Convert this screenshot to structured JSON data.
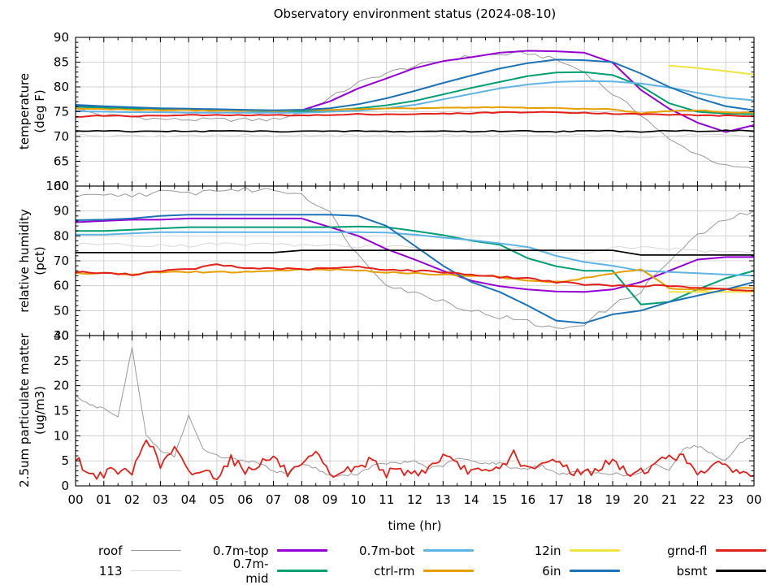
{
  "title": "Observatory environment status (2024-08-10)",
  "xlabel": "time (hr)",
  "x_tick_labels": [
    "00",
    "01",
    "02",
    "03",
    "04",
    "05",
    "06",
    "07",
    "08",
    "09",
    "10",
    "11",
    "12",
    "13",
    "14",
    "15",
    "16",
    "17",
    "18",
    "19",
    "20",
    "21",
    "22",
    "23",
    "00"
  ],
  "series_colors": {
    "roof": "#999999",
    "113": "#d8d8d8",
    "0.7m-top": "#9400d3",
    "0.7m-mid": "#009e73",
    "0.7m-bot": "#5fb4e5",
    "ctrl-rm": "#e69f00",
    "12in": "#f0e442",
    "6in": "#1d73b6",
    "grnd-fl": "#e3211b",
    "bsmt": "#000000"
  },
  "legend": {
    "columns": [
      [
        {
          "label": "roof",
          "thin": true
        },
        {
          "label": "113",
          "thin": true
        }
      ],
      [
        {
          "label": "0.7m-top",
          "thin": false
        },
        {
          "label": "0.7m-mid",
          "thin": false
        }
      ],
      [
        {
          "label": "0.7m-bot",
          "thin": false
        },
        {
          "label": "ctrl-rm",
          "thin": false
        }
      ],
      [
        {
          "label": "12in",
          "thin": false
        },
        {
          "label": "6in",
          "thin": false
        }
      ],
      [
        {
          "label": "grnd-fl",
          "thin": false
        },
        {
          "label": "bsmt",
          "thin": false
        }
      ]
    ]
  },
  "chart_data": {
    "type": "line",
    "x_axis": {
      "label": "time (hr)",
      "range_hours": [
        0,
        24
      ],
      "major_tick_hours": 1,
      "minor_tick_hours": 0.5,
      "grid": true
    },
    "panels": [
      {
        "id": "temperature",
        "ylabel": [
          "temperature",
          "(deg F)"
        ],
        "ylim": [
          60,
          90
        ],
        "yticks": [
          60,
          65,
          70,
          75,
          80,
          85,
          90
        ],
        "minor_y": 1,
        "series": [
          {
            "name": "roof",
            "x_step": 1,
            "width": 1,
            "noise": 0.4,
            "values": [
              75.5,
              74.3,
              74,
              73.5,
              73.4,
              73.4,
              73.4,
              73.4,
              74.8,
              77.8,
              80.8,
              82.8,
              84.2,
              85.3,
              86.2,
              86.5,
              86.8,
              85.5,
              83,
              78.6,
              74.5,
              69.3,
              66.5,
              64,
              63.4
            ]
          },
          {
            "name": "113",
            "x_step": 1,
            "width": 1,
            "noise": 0.2,
            "values": [
              70.3,
              70.2,
              70.3,
              70.1,
              70.3,
              70.2,
              70.3,
              70.2,
              70.3,
              70.1,
              70.3,
              70.2,
              70.1,
              70.3,
              70.2,
              70.3,
              70.1,
              70.2,
              70.3,
              70.2,
              69.9,
              70.1,
              70.4,
              70.2,
              70.1
            ]
          },
          {
            "name": "0.7m-top",
            "x_step": 1,
            "width": 2,
            "noise": 0,
            "values": [
              76.2,
              76,
              75.8,
              75.6,
              75.5,
              75.4,
              75.3,
              75.2,
              75.3,
              77.1,
              79.7,
              81.7,
              83.8,
              85.2,
              86,
              86.9,
              87.3,
              87.2,
              86.9,
              84.9,
              79.4,
              75.6,
              72.8,
              70.9,
              72.3
            ]
          },
          {
            "name": "0.7m-mid",
            "x_step": 1,
            "width": 2,
            "noise": 0,
            "values": [
              76,
              75.8,
              75.6,
              75.5,
              75.4,
              75.3,
              75.2,
              75.1,
              75.1,
              75.3,
              75.7,
              76.3,
              77.2,
              78.5,
              79.8,
              81,
              82.2,
              82.9,
              83,
              82.4,
              80.2,
              76.7,
              75,
              74.6,
              74.5
            ]
          },
          {
            "name": "0.7m-bot",
            "x_step": 1,
            "width": 2,
            "noise": 0,
            "values": [
              75.1,
              75,
              74.9,
              74.9,
              74.8,
              74.8,
              74.8,
              74.8,
              74.8,
              75,
              75.2,
              75.7,
              76.4,
              77.5,
              78.6,
              79.7,
              80.5,
              81,
              81.2,
              81.1,
              80.7,
              79.9,
              78.8,
              77.8,
              77.3
            ]
          },
          {
            "name": "ctrl-rm",
            "x_step": 1,
            "width": 2,
            "noise": 0.08,
            "values": [
              75.6,
              75.5,
              75.4,
              75.3,
              75.3,
              75.2,
              75.2,
              75.2,
              75.3,
              75.4,
              75.5,
              75.6,
              75.7,
              75.8,
              75.8,
              75.9,
              75.8,
              75.7,
              75.6,
              75.5,
              74.7,
              75.1,
              75.3,
              74.9,
              74.8
            ]
          },
          {
            "name": "12in",
            "x_step": 1,
            "width": 2,
            "noise": 0,
            "values": [
              null,
              null,
              null,
              null,
              null,
              null,
              null,
              null,
              null,
              null,
              null,
              null,
              null,
              null,
              null,
              null,
              null,
              null,
              null,
              null,
              null,
              84.3,
              83.8,
              83.2,
              82.5
            ]
          },
          {
            "name": "6in",
            "x_step": 1,
            "width": 2,
            "noise": 0,
            "values": [
              76.4,
              76.1,
              75.9,
              75.7,
              75.6,
              75.5,
              75.4,
              75.3,
              75.4,
              75.7,
              76.5,
              77.7,
              79.2,
              80.8,
              82.3,
              83.7,
              84.8,
              85.5,
              85.4,
              85,
              82.7,
              80,
              77.8,
              76.1,
              75.3
            ]
          },
          {
            "name": "grnd-fl",
            "x_step": 1,
            "width": 2,
            "noise": 0.1,
            "values": [
              74,
              74.2,
              74.1,
              74.2,
              74.3,
              74.3,
              74.3,
              74.3,
              74.3,
              74.3,
              74.5,
              74.5,
              74.5,
              74.6,
              74.7,
              74.9,
              74.9,
              74.9,
              74.8,
              74.6,
              74.5,
              74.4,
              74.3,
              74.2,
              74.1
            ]
          },
          {
            "name": "bsmt",
            "x_step": 1,
            "width": 1.7,
            "noise": 0.12,
            "values": [
              71.1,
              71.1,
              71,
              71.1,
              71,
              71.1,
              71.1,
              71,
              71.1,
              71,
              71.1,
              71,
              71,
              71.1,
              71,
              71.1,
              71.1,
              71,
              71.1,
              71.1,
              71,
              71.2,
              71.1,
              71.2,
              71.1
            ]
          }
        ]
      },
      {
        "id": "relative-humidity",
        "ylabel": [
          "relative humidity",
          "(pct)"
        ],
        "ylim": [
          40,
          100
        ],
        "yticks": [
          40,
          50,
          60,
          70,
          80,
          90,
          100
        ],
        "minor_y": 2,
        "series": [
          {
            "name": "roof",
            "x_step": 1,
            "width": 1,
            "noise": 1.1,
            "values": [
              95.5,
              96,
              96.5,
              97.5,
              97,
              98.5,
              98.5,
              98.5,
              97,
              89,
              72,
              61,
              57,
              54,
              50,
              47.5,
              45.5,
              42.5,
              45,
              52,
              58,
              70,
              80,
              86.5,
              90
            ]
          },
          {
            "name": "113",
            "x_step": 1,
            "width": 1,
            "noise": 0.6,
            "values": [
              76.5,
              77,
              76,
              76.5,
              76,
              77,
              76.5,
              77,
              76,
              76.5,
              75.5,
              76,
              75,
              74.5,
              75,
              74.5,
              75.5,
              73.5,
              73,
              75,
              75.5,
              75,
              74,
              73.5,
              73.5
            ]
          },
          {
            "name": "0.7m-top",
            "x_step": 1,
            "width": 2,
            "noise": 0,
            "values": [
              85.5,
              86,
              86.5,
              86.5,
              87,
              87,
              87,
              87,
              87,
              83.5,
              80,
              74.7,
              70.5,
              66,
              62,
              59.8,
              58.5,
              57.7,
              57.5,
              58.5,
              61.5,
              66,
              70.5,
              71.5,
              71.5
            ]
          },
          {
            "name": "0.7m-mid",
            "x_step": 1,
            "width": 2,
            "noise": 0,
            "values": [
              82,
              82,
              82.5,
              83,
              83.5,
              83.5,
              83.5,
              83.5,
              83.5,
              83.5,
              83.8,
              83.5,
              82,
              80.3,
              78.1,
              76.5,
              71,
              67.8,
              66,
              66,
              52.5,
              53.5,
              58.5,
              63,
              66
            ]
          },
          {
            "name": "0.7m-bot",
            "x_step": 1,
            "width": 2,
            "noise": 0,
            "values": [
              80.5,
              80.5,
              81,
              81.5,
              81.5,
              81.5,
              81.5,
              81.5,
              81.5,
              81.5,
              81.5,
              81.3,
              80.5,
              79.3,
              78.3,
              77,
              75.5,
              72,
              69.5,
              68,
              66,
              65.5,
              65,
              64.5,
              64
            ]
          },
          {
            "name": "ctrl-rm",
            "x_step": 1,
            "width": 2,
            "noise": 0.3,
            "values": [
              65,
              65,
              64.5,
              65.5,
              65.5,
              65.5,
              65.5,
              66,
              66.5,
              66.5,
              66,
              65.5,
              65,
              64.5,
              64,
              63.5,
              62,
              61.5,
              63,
              65,
              66.5,
              59,
              58.5,
              59,
              59
            ]
          },
          {
            "name": "12in",
            "x_step": 1,
            "width": 2,
            "noise": 0,
            "values": [
              null,
              null,
              null,
              null,
              null,
              null,
              null,
              null,
              null,
              null,
              null,
              null,
              null,
              null,
              null,
              null,
              null,
              null,
              null,
              null,
              null,
              57.5,
              57.5,
              57.5,
              57.5
            ]
          },
          {
            "name": "6in",
            "x_step": 1,
            "width": 2,
            "noise": 0,
            "values": [
              86.3,
              86.5,
              87,
              88,
              88.5,
              88.5,
              88.5,
              88.5,
              88.5,
              88.5,
              88,
              84,
              76,
              68,
              61.5,
              57.5,
              52,
              46,
              45,
              48.5,
              50,
              53.5,
              56,
              58.5,
              61.5
            ]
          },
          {
            "name": "grnd-fl",
            "x_step": 1,
            "width": 2,
            "noise": 0.35,
            "values": [
              65.5,
              65,
              64.5,
              66,
              66.5,
              68.5,
              67,
              67,
              66.5,
              67,
              67.5,
              66.5,
              66,
              65.5,
              64.5,
              63.5,
              63,
              61.5,
              60.5,
              60,
              60,
              60,
              59,
              58.5,
              58
            ]
          },
          {
            "name": "bsmt",
            "x_step": 1,
            "width": 1.7,
            "noise": 0,
            "values": [
              73.3,
              73.3,
              73.3,
              73.3,
              73.3,
              73.3,
              73.3,
              73.3,
              74.2,
              74.2,
              74.2,
              74.2,
              74.2,
              74.2,
              74.2,
              74.2,
              74.2,
              74.2,
              74.2,
              74.2,
              72.3,
              72.3,
              72.3,
              72.3,
              72.3
            ]
          }
        ]
      },
      {
        "id": "pm25",
        "ylabel": [
          "2.5um particulate matter",
          "(ug/m3)"
        ],
        "ylim": [
          0,
          30
        ],
        "yticks": [
          0,
          5,
          10,
          15,
          20,
          25,
          30
        ],
        "minor_y": 1,
        "series": [
          {
            "name": "roof",
            "x_step": 0.5,
            "width": 1,
            "noise": 0.25,
            "values": [
              18,
              16,
              15.5,
              14,
              27.5,
              10,
              7,
              6,
              14,
              7.5,
              6,
              5.5,
              5,
              4.5,
              3,
              2.5,
              4.5,
              3.5,
              2,
              2,
              2.5,
              4,
              4.5,
              4.5,
              5,
              3.5,
              4,
              5.5,
              5,
              4.5,
              4.5,
              3.5,
              3.5,
              4,
              2.5,
              2.5,
              3,
              2.5,
              2.5,
              2,
              2.5,
              4.5,
              3,
              7.5,
              8,
              6.5,
              5,
              8.5,
              10
            ]
          },
          {
            "name": "grnd-fl",
            "x_step": 0.5,
            "width": 1.8,
            "noise": 0.9,
            "values": [
              5.8,
              2,
              2.5,
              3,
              2.5,
              10,
              4,
              7.5,
              2.5,
              3,
              2,
              5.5,
              3,
              4.5,
              5.8,
              2.5,
              3.5,
              6.5,
              2,
              3,
              3.5,
              5.5,
              2.5,
              3,
              2.5,
              3.5,
              6,
              4,
              3,
              2.5,
              3.5,
              6.5,
              3,
              4,
              5.5,
              3,
              2.5,
              3.5,
              5,
              2.5,
              3,
              4,
              6.3,
              5.5,
              3,
              3.5,
              4.5,
              2.5,
              2
            ]
          }
        ]
      }
    ]
  }
}
